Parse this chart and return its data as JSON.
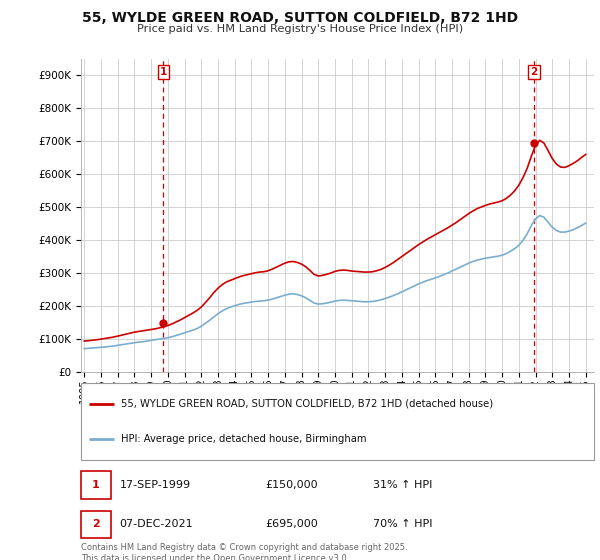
{
  "title_line1": "55, WYLDE GREEN ROAD, SUTTON COLDFIELD, B72 1HD",
  "title_line2": "Price paid vs. HM Land Registry's House Price Index (HPI)",
  "legend_line1": "55, WYLDE GREEN ROAD, SUTTON COLDFIELD, B72 1HD (detached house)",
  "legend_line2": "HPI: Average price, detached house, Birmingham",
  "footer": "Contains HM Land Registry data © Crown copyright and database right 2025.\nThis data is licensed under the Open Government Licence v3.0.",
  "sale1_date": "17-SEP-1999",
  "sale1_price": "£150,000",
  "sale1_hpi": "31% ↑ HPI",
  "sale2_date": "07-DEC-2021",
  "sale2_price": "£695,000",
  "sale2_hpi": "70% ↑ HPI",
  "red_color": "#cc0000",
  "blue_color": "#7aadcf",
  "grid_color": "#cccccc",
  "background_color": "#ffffff",
  "ylim": [
    0,
    950000
  ],
  "yticks": [
    0,
    100000,
    200000,
    300000,
    400000,
    500000,
    600000,
    700000,
    800000,
    900000
  ],
  "sale1_year": 1999.72,
  "sale1_value": 150000,
  "sale2_year": 2021.92,
  "sale2_value": 695000,
  "hpi_years": [
    1995.0,
    1995.25,
    1995.5,
    1995.75,
    1996.0,
    1996.25,
    1996.5,
    1996.75,
    1997.0,
    1997.25,
    1997.5,
    1997.75,
    1998.0,
    1998.25,
    1998.5,
    1998.75,
    1999.0,
    1999.25,
    1999.5,
    1999.75,
    2000.0,
    2000.25,
    2000.5,
    2000.75,
    2001.0,
    2001.25,
    2001.5,
    2001.75,
    2002.0,
    2002.25,
    2002.5,
    2002.75,
    2003.0,
    2003.25,
    2003.5,
    2003.75,
    2004.0,
    2004.25,
    2004.5,
    2004.75,
    2005.0,
    2005.25,
    2005.5,
    2005.75,
    2006.0,
    2006.25,
    2006.5,
    2006.75,
    2007.0,
    2007.25,
    2007.5,
    2007.75,
    2008.0,
    2008.25,
    2008.5,
    2008.75,
    2009.0,
    2009.25,
    2009.5,
    2009.75,
    2010.0,
    2010.25,
    2010.5,
    2010.75,
    2011.0,
    2011.25,
    2011.5,
    2011.75,
    2012.0,
    2012.25,
    2012.5,
    2012.75,
    2013.0,
    2013.25,
    2013.5,
    2013.75,
    2014.0,
    2014.25,
    2014.5,
    2014.75,
    2015.0,
    2015.25,
    2015.5,
    2015.75,
    2016.0,
    2016.25,
    2016.5,
    2016.75,
    2017.0,
    2017.25,
    2017.5,
    2017.75,
    2018.0,
    2018.25,
    2018.5,
    2018.75,
    2019.0,
    2019.25,
    2019.5,
    2019.75,
    2020.0,
    2020.25,
    2020.5,
    2020.75,
    2021.0,
    2021.25,
    2021.5,
    2021.75,
    2022.0,
    2022.25,
    2022.5,
    2022.75,
    2023.0,
    2023.25,
    2023.5,
    2023.75,
    2024.0,
    2024.25,
    2024.5,
    2024.75,
    2025.0
  ],
  "hpi_values": [
    72000,
    73000,
    74000,
    75000,
    76000,
    77000,
    78500,
    80000,
    82000,
    84000,
    86000,
    88000,
    90000,
    92000,
    93000,
    95000,
    97000,
    99000,
    101000,
    103000,
    105000,
    108000,
    112000,
    116000,
    120000,
    124000,
    128000,
    133000,
    140000,
    149000,
    158000,
    168000,
    178000,
    186000,
    193000,
    198000,
    202000,
    206000,
    209000,
    211000,
    213000,
    215000,
    216000,
    217000,
    219000,
    222000,
    226000,
    230000,
    234000,
    237000,
    238000,
    236000,
    232000,
    226000,
    218000,
    210000,
    207000,
    208000,
    210000,
    213000,
    216000,
    218000,
    219000,
    218000,
    217000,
    216000,
    215000,
    214000,
    214000,
    215000,
    217000,
    220000,
    224000,
    228000,
    233000,
    238000,
    244000,
    250000,
    256000,
    262000,
    268000,
    273000,
    278000,
    282000,
    286000,
    291000,
    296000,
    301000,
    307000,
    313000,
    319000,
    325000,
    331000,
    336000,
    340000,
    343000,
    346000,
    348000,
    350000,
    352000,
    355000,
    360000,
    367000,
    375000,
    385000,
    400000,
    420000,
    445000,
    465000,
    475000,
    470000,
    455000,
    440000,
    430000,
    425000,
    425000,
    428000,
    432000,
    438000,
    445000,
    452000
  ],
  "red_years": [
    1995.0,
    1995.25,
    1995.5,
    1995.75,
    1996.0,
    1996.25,
    1996.5,
    1996.75,
    1997.0,
    1997.25,
    1997.5,
    1997.75,
    1998.0,
    1998.25,
    1998.5,
    1998.75,
    1999.0,
    1999.25,
    1999.5,
    1999.75,
    2000.0,
    2000.25,
    2000.5,
    2000.75,
    2001.0,
    2001.25,
    2001.5,
    2001.75,
    2002.0,
    2002.25,
    2002.5,
    2002.75,
    2003.0,
    2003.25,
    2003.5,
    2003.75,
    2004.0,
    2004.25,
    2004.5,
    2004.75,
    2005.0,
    2005.25,
    2005.5,
    2005.75,
    2006.0,
    2006.25,
    2006.5,
    2006.75,
    2007.0,
    2007.25,
    2007.5,
    2007.75,
    2008.0,
    2008.25,
    2008.5,
    2008.75,
    2009.0,
    2009.25,
    2009.5,
    2009.75,
    2010.0,
    2010.25,
    2010.5,
    2010.75,
    2011.0,
    2011.25,
    2011.5,
    2011.75,
    2012.0,
    2012.25,
    2012.5,
    2012.75,
    2013.0,
    2013.25,
    2013.5,
    2013.75,
    2014.0,
    2014.25,
    2014.5,
    2014.75,
    2015.0,
    2015.25,
    2015.5,
    2015.75,
    2016.0,
    2016.25,
    2016.5,
    2016.75,
    2017.0,
    2017.25,
    2017.5,
    2017.75,
    2018.0,
    2018.25,
    2018.5,
    2018.75,
    2019.0,
    2019.25,
    2019.5,
    2019.75,
    2020.0,
    2020.25,
    2020.5,
    2020.75,
    2021.0,
    2021.25,
    2021.5,
    2021.75,
    2022.0,
    2022.25,
    2022.5,
    2022.75,
    2023.0,
    2023.25,
    2023.5,
    2023.75,
    2024.0,
    2024.25,
    2024.5,
    2024.75,
    2025.0
  ],
  "red_values": [
    95000,
    96000,
    97500,
    99000,
    101000,
    103000,
    105000,
    107000,
    110000,
    113000,
    116000,
    119000,
    122000,
    124000,
    126000,
    128000,
    130000,
    132000,
    135000,
    138000,
    142000,
    147000,
    153000,
    159000,
    166000,
    173000,
    180000,
    188000,
    198000,
    212000,
    226000,
    242000,
    255000,
    266000,
    274000,
    279000,
    284000,
    289000,
    293000,
    296000,
    299000,
    302000,
    304000,
    305000,
    308000,
    313000,
    319000,
    325000,
    331000,
    335000,
    336000,
    333000,
    328000,
    320000,
    309000,
    297000,
    292000,
    294000,
    297000,
    301000,
    306000,
    309000,
    310000,
    309000,
    307000,
    306000,
    305000,
    304000,
    304000,
    305000,
    308000,
    312000,
    318000,
    325000,
    333000,
    342000,
    351000,
    360000,
    369000,
    378000,
    387000,
    395000,
    403000,
    410000,
    417000,
    424000,
    431000,
    438000,
    446000,
    454000,
    463000,
    472000,
    481000,
    489000,
    496000,
    501000,
    506000,
    510000,
    513000,
    516000,
    520000,
    527000,
    537000,
    550000,
    567000,
    590000,
    618000,
    655000,
    688000,
    703000,
    695000,
    672000,
    648000,
    631000,
    622000,
    621000,
    626000,
    633000,
    641000,
    651000,
    660000
  ],
  "xlim_min": 1994.8,
  "xlim_max": 2025.5,
  "xtick_years": [
    1995,
    1996,
    1997,
    1998,
    1999,
    2000,
    2001,
    2002,
    2003,
    2004,
    2005,
    2006,
    2007,
    2008,
    2009,
    2010,
    2011,
    2012,
    2013,
    2014,
    2015,
    2016,
    2017,
    2018,
    2019,
    2020,
    2021,
    2022,
    2023,
    2024,
    2025
  ]
}
